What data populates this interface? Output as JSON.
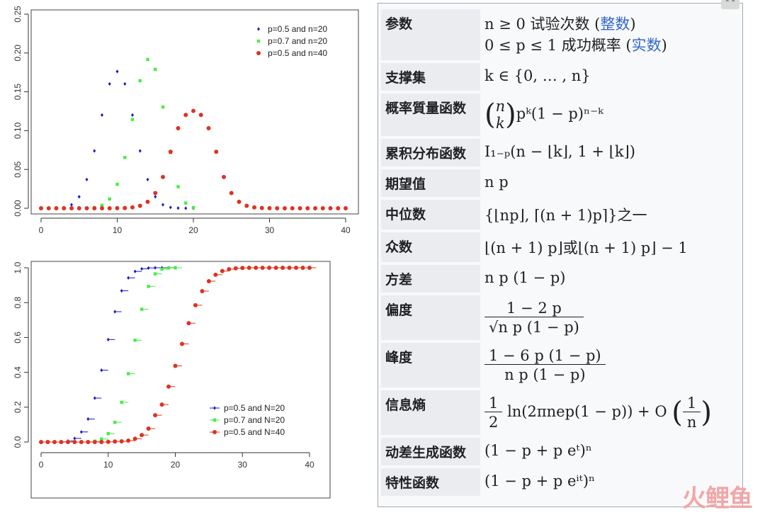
{
  "chart_data": [
    {
      "type": "scatter",
      "title": "",
      "xlabel": "",
      "ylabel": "",
      "xlim": [
        0,
        40
      ],
      "ylim": [
        0,
        0.25
      ],
      "x_ticks": [
        "0",
        "10",
        "20",
        "30",
        "40"
      ],
      "y_ticks": [
        "0.00",
        "0.05",
        "0.10",
        "0.15",
        "0.20",
        "0.25"
      ],
      "legend_position": "top-right",
      "series": [
        {
          "name": "p=0.5 and n=20",
          "color": "#1a1ac8",
          "marker": "diamond",
          "x": [
            0,
            1,
            2,
            3,
            4,
            5,
            6,
            7,
            8,
            9,
            10,
            11,
            12,
            13,
            14,
            15,
            16,
            17,
            18,
            19,
            20
          ],
          "values": [
            0.0,
            0.0,
            0.0002,
            0.0011,
            0.0046,
            0.0148,
            0.037,
            0.0739,
            0.1201,
            0.1602,
            0.1762,
            0.1602,
            0.1201,
            0.0739,
            0.037,
            0.0148,
            0.0046,
            0.0011,
            0.0002,
            0.0,
            0.0
          ]
        },
        {
          "name": "p=0.7 and n=20",
          "color": "#44ee44",
          "marker": "square",
          "x": [
            0,
            1,
            2,
            3,
            4,
            5,
            6,
            7,
            8,
            9,
            10,
            11,
            12,
            13,
            14,
            15,
            16,
            17,
            18,
            19,
            20
          ],
          "values": [
            0.0,
            0.0,
            0.0,
            0.0,
            0.0,
            0.0,
            0.0002,
            0.001,
            0.0039,
            0.012,
            0.0308,
            0.0654,
            0.1144,
            0.1643,
            0.1916,
            0.1789,
            0.1304,
            0.0716,
            0.0278,
            0.0068,
            0.0008
          ]
        },
        {
          "name": "p=0.5 and n=40",
          "color": "#dd3322",
          "marker": "circle",
          "x": [
            0,
            1,
            2,
            3,
            4,
            5,
            6,
            7,
            8,
            9,
            10,
            11,
            12,
            13,
            14,
            15,
            16,
            17,
            18,
            19,
            20,
            21,
            22,
            23,
            24,
            25,
            26,
            27,
            28,
            29,
            30,
            31,
            32,
            33,
            34,
            35,
            36,
            37,
            38,
            39,
            40
          ],
          "values": [
            0,
            0,
            0,
            0,
            0,
            0,
            0,
            0,
            0,
            0,
            0.0001,
            0.0003,
            0.0011,
            0.0032,
            0.0083,
            0.0196,
            0.0403,
            0.0728,
            0.1031,
            0.1202,
            0.1254,
            0.1202,
            0.1031,
            0.0728,
            0.0403,
            0.0196,
            0.0083,
            0.0032,
            0.0011,
            0.0003,
            0.0001,
            0,
            0,
            0,
            0,
            0,
            0,
            0,
            0,
            0,
            0
          ]
        }
      ]
    },
    {
      "type": "line",
      "title": "",
      "xlabel": "",
      "ylabel": "",
      "xlim": [
        0,
        40
      ],
      "ylim": [
        0,
        1
      ],
      "x_ticks": [
        "0",
        "10",
        "20",
        "30",
        "40"
      ],
      "y_ticks": [
        "0.0",
        "0.2",
        "0.4",
        "0.6",
        "0.8",
        "1.0"
      ],
      "legend_position": "bottom-right",
      "series": [
        {
          "name": "p=0.5 and N=20",
          "color": "#1a1ac8",
          "marker": "diamond",
          "x": [
            0,
            1,
            2,
            3,
            4,
            5,
            6,
            7,
            8,
            9,
            10,
            11,
            12,
            13,
            14,
            15,
            16,
            17,
            18,
            19,
            20
          ],
          "values": [
            0,
            0,
            0,
            0.001,
            0.006,
            0.021,
            0.058,
            0.132,
            0.252,
            0.412,
            0.588,
            0.748,
            0.868,
            0.942,
            0.979,
            0.994,
            0.999,
            1,
            1,
            1,
            1
          ]
        },
        {
          "name": "p=0.7 and N=20",
          "color": "#44ee44",
          "marker": "square",
          "x": [
            0,
            1,
            2,
            3,
            4,
            5,
            6,
            7,
            8,
            9,
            10,
            11,
            12,
            13,
            14,
            15,
            16,
            17,
            18,
            19,
            20
          ],
          "values": [
            0,
            0,
            0,
            0,
            0,
            0,
            0,
            0.001,
            0.005,
            0.017,
            0.048,
            0.113,
            0.228,
            0.392,
            0.584,
            0.762,
            0.893,
            0.965,
            0.992,
            0.999,
            1
          ]
        },
        {
          "name": "p=0.5 and N=40",
          "color": "#dd3322",
          "marker": "circle",
          "x": [
            0,
            1,
            2,
            3,
            4,
            5,
            6,
            7,
            8,
            9,
            10,
            11,
            12,
            13,
            14,
            15,
            16,
            17,
            18,
            19,
            20,
            21,
            22,
            23,
            24,
            25,
            26,
            27,
            28,
            29,
            30,
            31,
            32,
            33,
            34,
            35,
            36,
            37,
            38,
            39,
            40
          ],
          "values": [
            0,
            0,
            0,
            0,
            0,
            0,
            0,
            0,
            0,
            0,
            0.001,
            0.003,
            0.004,
            0.008,
            0.019,
            0.04,
            0.077,
            0.154,
            0.215,
            0.318,
            0.437,
            0.563,
            0.682,
            0.785,
            0.866,
            0.923,
            0.96,
            0.981,
            0.992,
            0.997,
            0.999,
            1,
            1,
            1,
            1,
            1,
            1,
            1,
            1,
            1,
            1
          ]
        }
      ]
    }
  ],
  "infobox": {
    "rows": [
      {
        "label": "参数",
        "lines": [
          "n ≥ 0 试验次数 (",
          "0 ≤ p ≤ 1 成功概率 ("
        ],
        "links": [
          "整数",
          "实数"
        ]
      },
      {
        "label": "支撑集",
        "value": "k ∈ {0, … , n}"
      },
      {
        "label": "概率質量函数",
        "value": "pᵏ(1 − p)ⁿ⁻ᵏ",
        "binom_top": "n",
        "binom_bottom": "k"
      },
      {
        "label": "累积分布函数",
        "value": "I₁₋ₚ(n − ⌊k⌋, 1 + ⌊k⌋)"
      },
      {
        "label": "期望值",
        "value": "n p"
      },
      {
        "label": "中位数",
        "value": "{⌊np⌋, ⌈(n + 1)p⌉}之一"
      },
      {
        "label": "众数",
        "value": "⌊(n + 1) p⌋或⌊(n + 1) p⌋ − 1"
      },
      {
        "label": "方差",
        "value": "n p (1 − p)"
      },
      {
        "label": "偏度",
        "num": "1 − 2 p",
        "den": "√n p (1 − p)"
      },
      {
        "label": "峰度",
        "num": "1 − 6 p (1 − p)",
        "den": "n p (1 − p)"
      },
      {
        "label": "信息熵",
        "value": "ln(2πnep(1 − p)) + O",
        "frac1_num": "1",
        "frac1_den": "2",
        "frac2_num": "1",
        "frac2_den": "n"
      },
      {
        "label": "动差生成函数",
        "value": "(1 − p + p eᵗ)ⁿ"
      },
      {
        "label": "特性函数",
        "value": "(1 − p + p eⁱᵗ)ⁿ"
      }
    ]
  },
  "watermark": "火鲤鱼",
  "colors": {
    "label_bg": "#eaecf0",
    "box_bg": "#f8f9fa",
    "link": "#3366cc"
  }
}
